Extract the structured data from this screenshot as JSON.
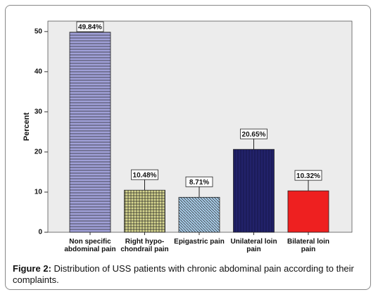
{
  "chart_data": {
    "type": "bar",
    "y_label": "Percent",
    "categories": [
      "Non specific\nabdominal pain",
      "Right hypo-\nchondrail pain",
      "Epigastric pain",
      "Unilateral loin\npain",
      "Bilateral loin\npain"
    ],
    "values": [
      49.84,
      10.48,
      8.71,
      20.65,
      10.32
    ],
    "value_labels": [
      "49.84%",
      "10.48%",
      "8.71%",
      "20.65%",
      "10.32%"
    ],
    "colors": [
      "#a0a0d8",
      "#d8d890",
      "#a8cce8",
      "#22226a",
      "#ee2020"
    ],
    "ylim": [
      0,
      52.6
    ],
    "yticks": [
      0,
      10,
      20,
      30,
      40,
      50
    ]
  },
  "caption": {
    "label": "Figure 2:",
    "text": "Distribution of USS patients with chronic abdominal pain according to their complaints."
  }
}
